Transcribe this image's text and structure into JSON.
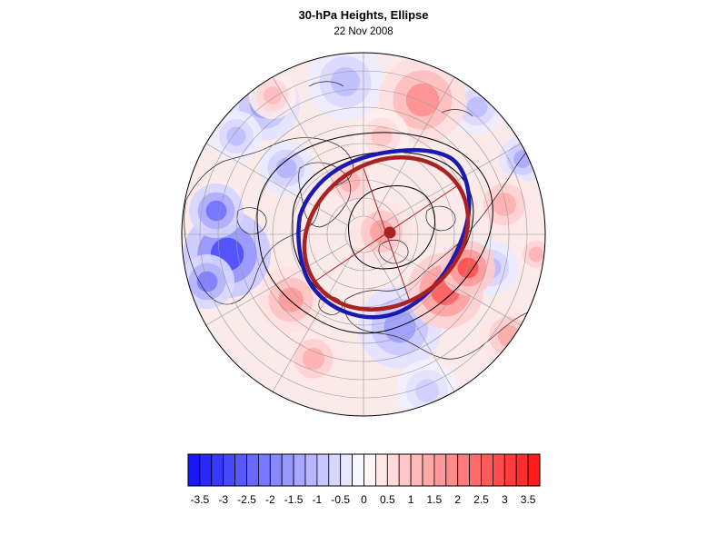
{
  "figure": {
    "title": "30-hPa Heights, Ellipse",
    "date": "22 Nov 2008"
  },
  "colors": {
    "negative_max": "#1010ff",
    "positive_max": "#ff1414",
    "neutral": "#ffffff",
    "observed_vortex_edge": "#1a1ab0",
    "fitted_ellipse": "#a82222",
    "height_contours": "#000000"
  },
  "colorbar": {
    "min": -3.75,
    "max": 3.75,
    "step": 0.25,
    "tick_labels": [
      "-3.5",
      "-3",
      "-2.5",
      "-2",
      "-1.5",
      "-1",
      "-0.5",
      "0",
      "0.5",
      "1",
      "1.5",
      "2",
      "2.5",
      "3",
      "3.5"
    ]
  }
}
